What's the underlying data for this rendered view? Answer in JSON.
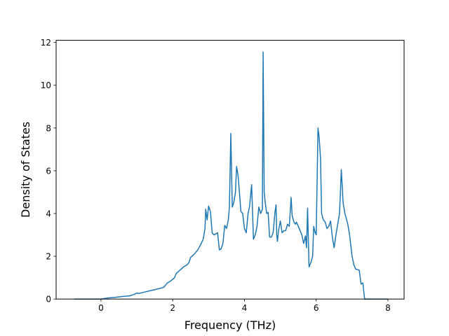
{
  "chart_data": {
    "type": "line",
    "title": "",
    "xlabel": "Frequency (THz)",
    "ylabel": "Density of States",
    "xlim": [
      -1.25,
      8.45
    ],
    "ylim": [
      0,
      12.1
    ],
    "xticks": [
      0,
      2,
      4,
      6,
      8
    ],
    "yticks": [
      0,
      2,
      4,
      6,
      8,
      10,
      12
    ],
    "grid": false,
    "legend": "none",
    "line_color": "#1f77b4",
    "series": [
      {
        "x": [
          -0.75,
          -0.6,
          -0.4,
          -0.2,
          0.0,
          0.2,
          0.4,
          0.6,
          0.8,
          0.9,
          1.0,
          1.05,
          1.2,
          1.4,
          1.6,
          1.75,
          1.85,
          1.95,
          2.05,
          2.1,
          2.2,
          2.3,
          2.4,
          2.45,
          2.5,
          2.6,
          2.7,
          2.78,
          2.85,
          2.9,
          2.92,
          2.96,
          3.0,
          3.05,
          3.1,
          3.15,
          3.2,
          3.25,
          3.3,
          3.35,
          3.4,
          3.45,
          3.5,
          3.55,
          3.58,
          3.62,
          3.66,
          3.7,
          3.75,
          3.78,
          3.82,
          3.86,
          3.9,
          3.95,
          4.0,
          4.05,
          4.1,
          4.14,
          4.2,
          4.25,
          4.3,
          4.35,
          4.4,
          4.45,
          4.5,
          4.52,
          4.55,
          4.58,
          4.62,
          4.66,
          4.7,
          4.75,
          4.8,
          4.85,
          4.88,
          4.9,
          4.92,
          4.95,
          5.0,
          5.05,
          5.1,
          5.15,
          5.2,
          5.25,
          5.3,
          5.33,
          5.38,
          5.42,
          5.45,
          5.5,
          5.55,
          5.6,
          5.65,
          5.7,
          5.73,
          5.76,
          5.8,
          5.85,
          5.9,
          5.93,
          5.97,
          6.0,
          6.05,
          6.08,
          6.12,
          6.15,
          6.2,
          6.25,
          6.3,
          6.35,
          6.4,
          6.45,
          6.5,
          6.55,
          6.6,
          6.65,
          6.7,
          6.75,
          6.8,
          6.85,
          6.88,
          6.93,
          7.0,
          7.05,
          7.1,
          7.2,
          7.25,
          7.3,
          7.35,
          7.6,
          8.0
        ],
        "y": [
          0,
          0,
          0,
          0,
          0,
          0.05,
          0.08,
          0.12,
          0.15,
          0.2,
          0.28,
          0.26,
          0.32,
          0.4,
          0.48,
          0.55,
          0.75,
          0.85,
          1.0,
          1.2,
          1.35,
          1.5,
          1.6,
          1.7,
          1.95,
          2.1,
          2.3,
          2.55,
          2.8,
          3.3,
          4.2,
          3.7,
          4.35,
          4.1,
          3.1,
          3.0,
          3.05,
          3.1,
          2.3,
          2.35,
          2.6,
          3.45,
          3.3,
          3.7,
          4.3,
          7.75,
          4.3,
          4.5,
          5.0,
          6.2,
          5.8,
          5.0,
          4.1,
          4.0,
          3.3,
          3.1,
          4.0,
          4.3,
          5.35,
          2.8,
          3.0,
          3.4,
          4.3,
          4.0,
          4.2,
          11.55,
          5.0,
          4.5,
          4.0,
          4.05,
          2.9,
          2.9,
          3.1,
          4.05,
          4.4,
          3.0,
          2.7,
          3.2,
          3.65,
          3.1,
          3.2,
          3.2,
          3.5,
          3.4,
          4.75,
          3.9,
          3.6,
          3.5,
          3.6,
          3.4,
          3.2,
          3.0,
          2.6,
          2.95,
          2.4,
          4.25,
          1.5,
          1.7,
          2.0,
          3.4,
          3.1,
          3.0,
          8.0,
          7.6,
          6.6,
          4.0,
          3.7,
          3.6,
          3.3,
          3.4,
          3.65,
          2.9,
          2.4,
          3.0,
          3.5,
          4.0,
          6.05,
          4.5,
          4.0,
          3.7,
          3.5,
          3.0,
          2.0,
          1.6,
          1.4,
          1.35,
          0.7,
          0.75,
          0.0,
          0,
          0
        ]
      }
    ]
  }
}
